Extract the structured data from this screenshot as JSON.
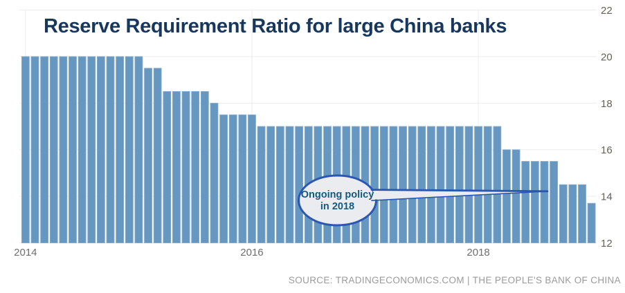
{
  "title": {
    "text": "Reserve Requirement Ratio for large China banks"
  },
  "source": {
    "text": "SOURCE: TRADINGECONOMICS.COM | THE PEOPLE'S BANK OF CHINA"
  },
  "annotation": {
    "line1": "Ongoing policy",
    "line2": "in 2018"
  },
  "colors": {
    "title": "#17375e",
    "bar_fill": "#6697c1",
    "bar_edge": "#84abcd",
    "grid": "#ececec",
    "y_tick_text": "#63605a",
    "x_tick_text": "#6e6e6e",
    "source_text": "#9a9a9a",
    "bubble_fill": "#eaecef",
    "bubble_stroke": "#2b57b2",
    "bubble_text": "#14597e"
  },
  "chart_data": {
    "type": "bar",
    "title": "Reserve Requirement Ratio for large China banks",
    "ylabel": "",
    "xlabel": "",
    "unit": "percent",
    "frequency": "monthly",
    "start_period": "2014-01",
    "end_period": "2019-01",
    "ylim": [
      12,
      22
    ],
    "y_ticks": [
      12,
      14,
      16,
      18,
      20,
      22
    ],
    "y_axis_side": "right",
    "grid": true,
    "x_ticks": [
      {
        "label": "2014",
        "bar_index": 0
      },
      {
        "label": "2016",
        "bar_index": 24
      },
      {
        "label": "2018",
        "bar_index": 48
      }
    ],
    "values": [
      20,
      20,
      20,
      20,
      20,
      20,
      20,
      20,
      20,
      20,
      20,
      20,
      20,
      19.5,
      19.5,
      18.5,
      18.5,
      18.5,
      18.5,
      18.5,
      18,
      17.5,
      17.5,
      17.5,
      17.5,
      17,
      17,
      17,
      17,
      17,
      17,
      17,
      17,
      17,
      17,
      17,
      17,
      17,
      17,
      17,
      17,
      17,
      17,
      17,
      17,
      17,
      17,
      17,
      17,
      17,
      17,
      16,
      16,
      15.5,
      15.5,
      15.5,
      15.5,
      14.5,
      14.5,
      14.5,
      13.7
    ],
    "annotation": {
      "text": "Ongoing policy in 2018",
      "points_to_value": 14.2
    }
  }
}
